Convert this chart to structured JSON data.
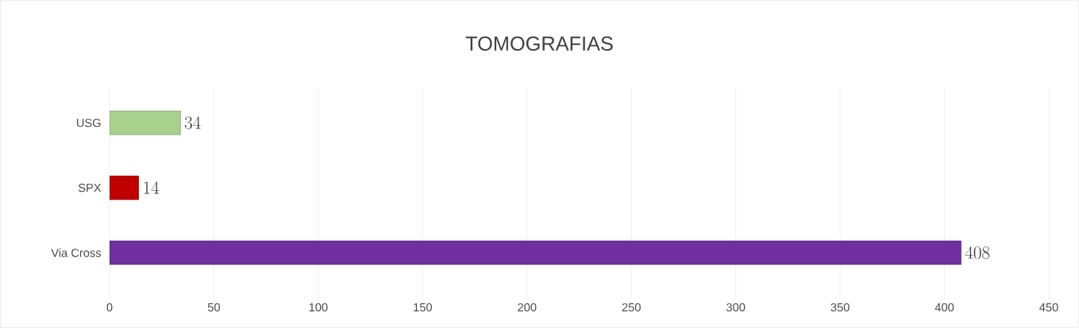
{
  "chart_data": {
    "type": "bar",
    "orientation": "horizontal",
    "title": "TOMOGRAFIAS",
    "categories": [
      "USG",
      "SPX",
      "Via Cross"
    ],
    "values": [
      34,
      14,
      408
    ],
    "colors": [
      "#a9d18e",
      "#c00000",
      "#7030a0"
    ],
    "xlim": [
      0,
      450
    ],
    "xticks": [
      0,
      50,
      100,
      150,
      200,
      250,
      300,
      350,
      400,
      450
    ],
    "grid": "x",
    "data_labels": true
  }
}
